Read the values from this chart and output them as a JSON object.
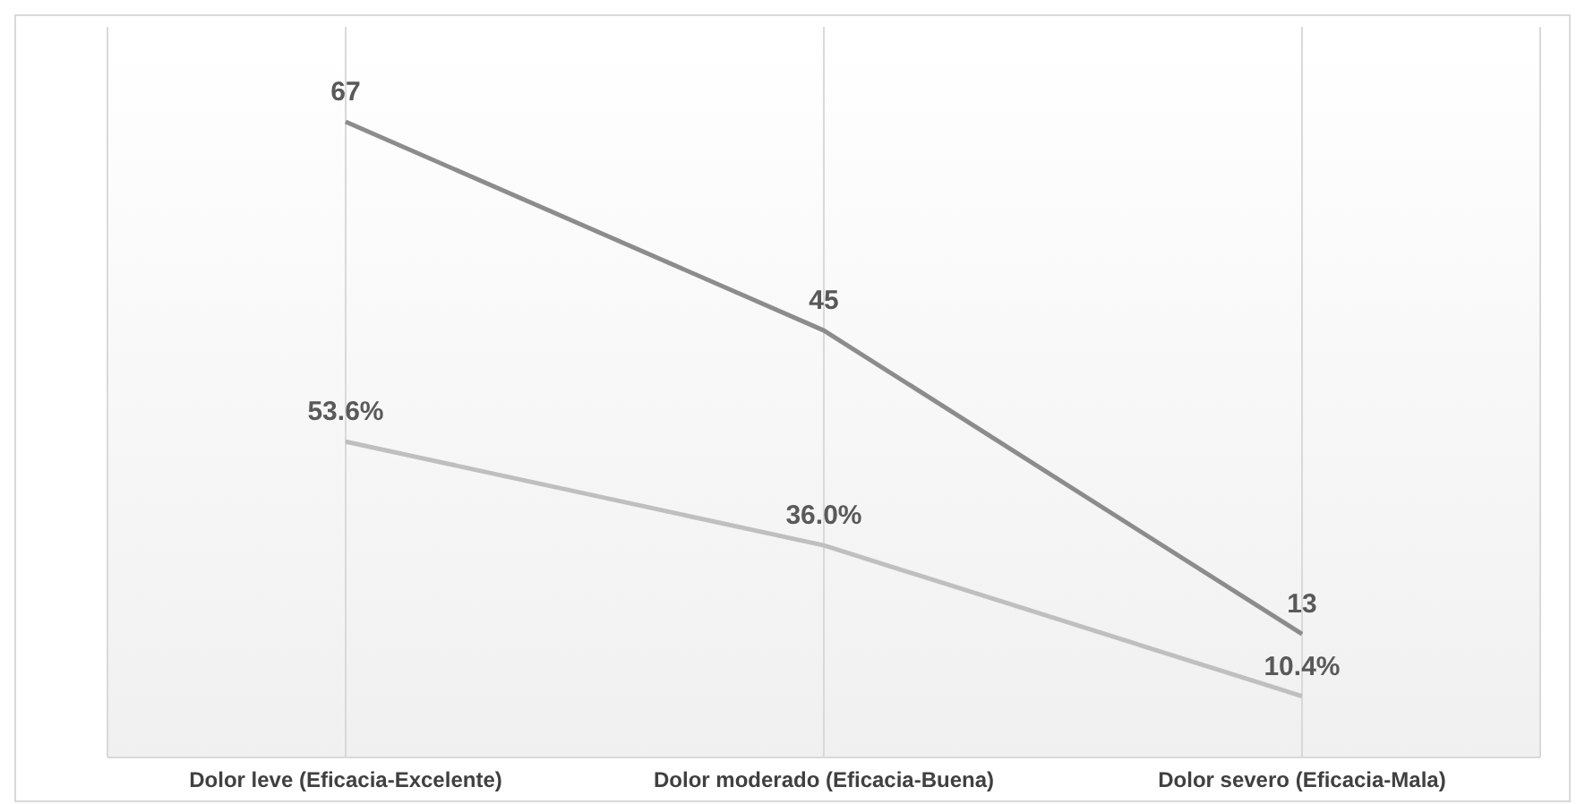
{
  "chart_data": {
    "type": "line",
    "categories": [
      "Dolor leve (Eficacia-Excelente)",
      "Dolor moderado  (Eficacia-Buena)",
      "Dolor severo (Eficacia-Mala)"
    ],
    "series": [
      {
        "color": "#8c8c8c",
        "values": [
          67,
          45,
          13
        ],
        "value_labels": [
          "67",
          "45",
          "13"
        ]
      },
      {
        "color": "#bfbfbf",
        "values": [
          53.6,
          36.0,
          10.4
        ],
        "value_labels": [
          "53.6%",
          "36.0%",
          "10.4%"
        ],
        "axis": "y2"
      }
    ],
    "ylim": [
      0,
      77
    ],
    "y2lim": [
      0,
      124
    ],
    "grid": "x",
    "tick_labels": "x",
    "marker": "none",
    "line_style": "solid"
  }
}
